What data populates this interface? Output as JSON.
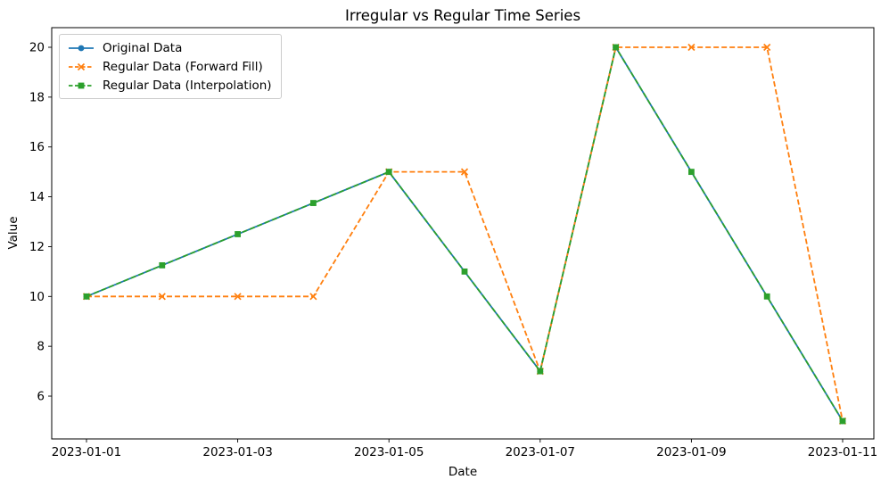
{
  "chart_data": {
    "type": "line",
    "title": "Irregular vs Regular Time Series",
    "xlabel": "Date",
    "ylabel": "Value",
    "grid": false,
    "legend_position": "upper-left",
    "ylim": [
      4.25,
      20.8
    ],
    "xlim_days_from_2023_01_01": [
      -0.46,
      10.41
    ],
    "y_ticks": [
      6,
      8,
      10,
      12,
      14,
      16,
      18,
      20
    ],
    "x_ticks": [
      {
        "day": 0,
        "label": "2023-01-01"
      },
      {
        "day": 2,
        "label": "2023-01-03"
      },
      {
        "day": 4,
        "label": "2023-01-05"
      },
      {
        "day": 6,
        "label": "2023-01-07"
      },
      {
        "day": 8,
        "label": "2023-01-09"
      },
      {
        "day": 10,
        "label": "2023-01-11"
      }
    ],
    "series": [
      {
        "id": "original-data",
        "name": "Original Data",
        "color": "#1f77b4",
        "linestyle": "solid",
        "marker": "circle",
        "points": [
          {
            "date": "2023-01-01",
            "day": 0,
            "value": 10
          },
          {
            "date": "2023-01-05",
            "day": 4,
            "value": 15
          },
          {
            "date": "2023-01-07",
            "day": 6,
            "value": 7
          },
          {
            "date": "2023-01-08",
            "day": 7,
            "value": 20
          },
          {
            "date": "2023-01-11",
            "day": 10,
            "value": 5
          }
        ]
      },
      {
        "id": "forward-fill",
        "name": "Regular Data (Forward Fill)",
        "color": "#ff7f0e",
        "linestyle": "dashed",
        "marker": "x",
        "points": [
          {
            "date": "2023-01-01",
            "day": 0,
            "value": 10
          },
          {
            "date": "2023-01-02",
            "day": 1,
            "value": 10
          },
          {
            "date": "2023-01-03",
            "day": 2,
            "value": 10
          },
          {
            "date": "2023-01-04",
            "day": 3,
            "value": 10
          },
          {
            "date": "2023-01-05",
            "day": 4,
            "value": 15
          },
          {
            "date": "2023-01-06",
            "day": 5,
            "value": 15
          },
          {
            "date": "2023-01-07",
            "day": 6,
            "value": 7
          },
          {
            "date": "2023-01-08",
            "day": 7,
            "value": 20
          },
          {
            "date": "2023-01-09",
            "day": 8,
            "value": 20
          },
          {
            "date": "2023-01-10",
            "day": 9,
            "value": 20
          },
          {
            "date": "2023-01-11",
            "day": 10,
            "value": 5
          }
        ]
      },
      {
        "id": "interpolation",
        "name": "Regular Data (Interpolation)",
        "color": "#2ca02c",
        "linestyle": "dashed",
        "marker": "square",
        "points": [
          {
            "date": "2023-01-01",
            "day": 0,
            "value": 10
          },
          {
            "date": "2023-01-02",
            "day": 1,
            "value": 11.25
          },
          {
            "date": "2023-01-03",
            "day": 2,
            "value": 12.5
          },
          {
            "date": "2023-01-04",
            "day": 3,
            "value": 13.75
          },
          {
            "date": "2023-01-05",
            "day": 4,
            "value": 15
          },
          {
            "date": "2023-01-06",
            "day": 5,
            "value": 11
          },
          {
            "date": "2023-01-07",
            "day": 6,
            "value": 7
          },
          {
            "date": "2023-01-08",
            "day": 7,
            "value": 20
          },
          {
            "date": "2023-01-09",
            "day": 8,
            "value": 15
          },
          {
            "date": "2023-01-10",
            "day": 9,
            "value": 10
          },
          {
            "date": "2023-01-11",
            "day": 10,
            "value": 5
          }
        ]
      }
    ]
  }
}
